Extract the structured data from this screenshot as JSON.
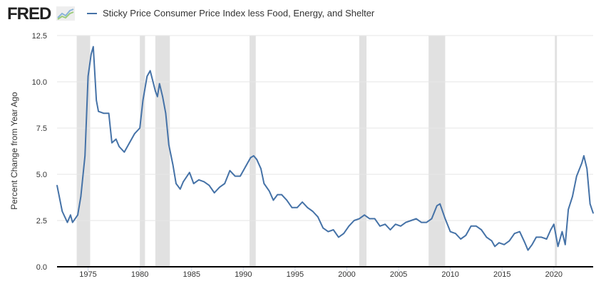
{
  "header": {
    "logo": "FRED",
    "logo_icon": "chart-line-icon"
  },
  "chart_data": {
    "type": "line",
    "title": "Sticky Price Consumer Price Index less Food, Energy, and Shelter",
    "xlabel": "",
    "ylabel": "Percent Change from Year Ago",
    "xlim": [
      1972,
      2023.8
    ],
    "ylim": [
      0,
      12.5
    ],
    "yticks": [
      "0.0",
      "2.5",
      "5.0",
      "7.5",
      "10.0",
      "12.5"
    ],
    "xticks": [
      "1975",
      "1980",
      "1985",
      "1990",
      "1995",
      "2000",
      "2005",
      "2010",
      "2015",
      "2020"
    ],
    "grid": true,
    "legend": "top-left",
    "color": "#4572a7",
    "recessions": [
      [
        1973.9,
        1975.2
      ],
      [
        1980.0,
        1980.5
      ],
      [
        1981.5,
        1982.9
      ],
      [
        1990.6,
        1991.2
      ],
      [
        2001.2,
        2001.9
      ],
      [
        2007.9,
        2009.5
      ],
      [
        2020.1,
        2020.3
      ]
    ],
    "series": [
      {
        "name": "Sticky Price Consumer Price Index less Food, Energy, and Shelter",
        "x": [
          1972.0,
          1972.5,
          1973.0,
          1973.3,
          1973.5,
          1974.0,
          1974.3,
          1974.7,
          1975.0,
          1975.3,
          1975.5,
          1975.8,
          1976.0,
          1976.5,
          1977.0,
          1977.3,
          1977.7,
          1978.0,
          1978.5,
          1979.0,
          1979.5,
          1980.0,
          1980.3,
          1980.7,
          1981.0,
          1981.5,
          1981.7,
          1981.9,
          1982.2,
          1982.5,
          1982.8,
          1983.2,
          1983.5,
          1983.9,
          1984.2,
          1984.8,
          1985.2,
          1985.7,
          1986.2,
          1986.7,
          1987.2,
          1987.7,
          1988.2,
          1988.7,
          1989.2,
          1989.7,
          1990.2,
          1990.7,
          1991.0,
          1991.3,
          1991.7,
          1992.0,
          1992.5,
          1992.9,
          1993.3,
          1993.7,
          1994.2,
          1994.7,
          1995.2,
          1995.7,
          1996.2,
          1996.7,
          1997.2,
          1997.7,
          1998.2,
          1998.7,
          1999.2,
          1999.7,
          2000.2,
          2000.7,
          2001.2,
          2001.7,
          2002.2,
          2002.7,
          2003.2,
          2003.7,
          2004.2,
          2004.7,
          2005.2,
          2005.7,
          2006.2,
          2006.7,
          2007.2,
          2007.7,
          2008.2,
          2008.7,
          2009.0,
          2009.5,
          2010.0,
          2010.5,
          2011.0,
          2011.5,
          2012.0,
          2012.5,
          2013.0,
          2013.5,
          2014.0,
          2014.3,
          2014.7,
          2015.2,
          2015.7,
          2016.2,
          2016.7,
          2017.2,
          2017.5,
          2017.9,
          2018.3,
          2018.8,
          2019.3,
          2019.7,
          2020.0,
          2020.4,
          2020.8,
          2021.1,
          2021.4,
          2021.8,
          2022.2,
          2022.7,
          2022.9,
          2023.2,
          2023.5,
          2023.8
        ],
        "values": [
          4.4,
          3.0,
          2.4,
          2.8,
          2.4,
          2.8,
          3.8,
          6.0,
          10.3,
          11.5,
          11.9,
          9.0,
          8.4,
          8.3,
          8.3,
          6.7,
          6.9,
          6.5,
          6.2,
          6.7,
          7.2,
          7.5,
          9.0,
          10.3,
          10.6,
          9.5,
          9.2,
          9.9,
          9.2,
          8.3,
          6.6,
          5.5,
          4.5,
          4.2,
          4.6,
          5.1,
          4.5,
          4.7,
          4.6,
          4.4,
          4.0,
          4.3,
          4.5,
          5.2,
          4.9,
          4.9,
          5.4,
          5.9,
          6.0,
          5.8,
          5.3,
          4.5,
          4.1,
          3.6,
          3.9,
          3.9,
          3.6,
          3.2,
          3.2,
          3.5,
          3.2,
          3.0,
          2.7,
          2.1,
          1.9,
          2.0,
          1.6,
          1.8,
          2.2,
          2.5,
          2.6,
          2.8,
          2.6,
          2.6,
          2.2,
          2.3,
          2.0,
          2.3,
          2.2,
          2.4,
          2.5,
          2.6,
          2.4,
          2.4,
          2.6,
          3.3,
          3.4,
          2.6,
          1.9,
          1.8,
          1.5,
          1.7,
          2.2,
          2.2,
          2.0,
          1.6,
          1.4,
          1.1,
          1.3,
          1.2,
          1.4,
          1.8,
          1.9,
          1.3,
          0.9,
          1.2,
          1.6,
          1.6,
          1.5,
          2.0,
          2.3,
          1.1,
          1.9,
          1.2,
          3.1,
          3.8,
          4.9,
          5.6,
          6.0,
          5.3,
          3.4,
          2.9
        ]
      }
    ]
  }
}
